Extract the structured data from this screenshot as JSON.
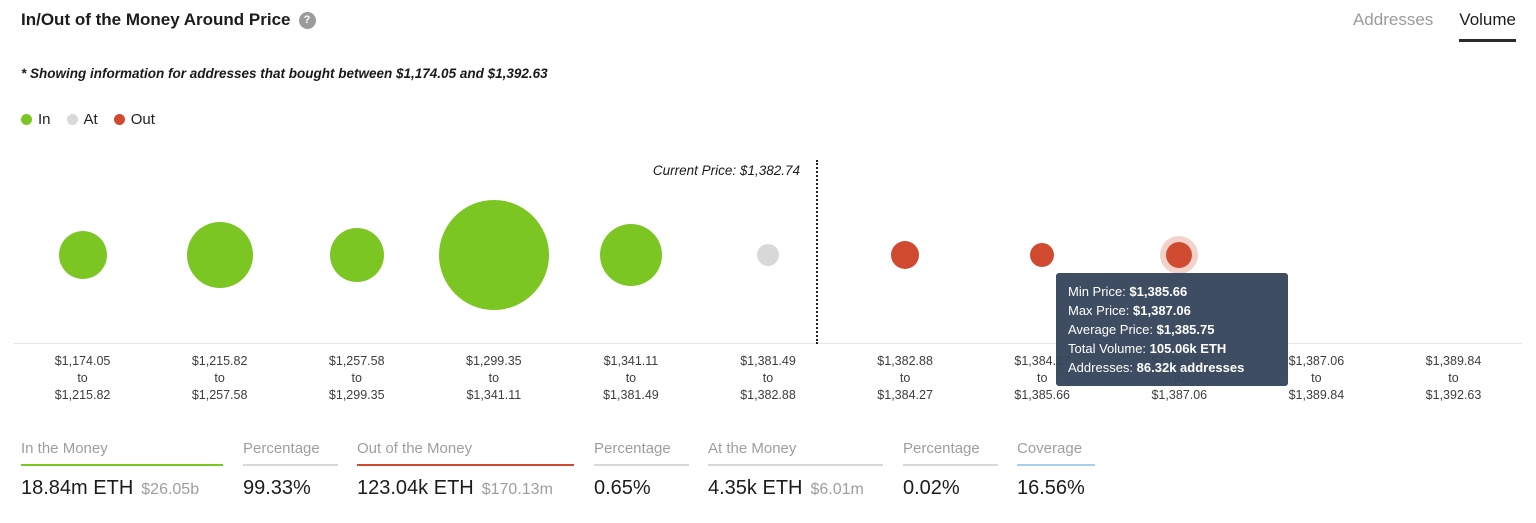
{
  "header": {
    "title": "In/Out of the Money Around Price",
    "help_icon": "?",
    "tabs": [
      {
        "label": "Addresses",
        "active": false
      },
      {
        "label": "Volume",
        "active": true
      }
    ]
  },
  "note": "* Showing information for addresses that bought between $1,174.05 and $1,392.63",
  "legend": [
    {
      "label": "In",
      "color": "#7BC623"
    },
    {
      "label": "At",
      "color": "#D8D8D8"
    },
    {
      "label": "Out",
      "color": "#D04A2F"
    }
  ],
  "chart_data": {
    "type": "bubble",
    "title": "In/Out of the Money Around Price",
    "current_price_label": "Current Price: $1,382.74",
    "current_price": 1382.74,
    "to_label": "to",
    "colors": {
      "in": "#7BC623",
      "at": "#D8D8D8",
      "out": "#D04A2F"
    },
    "buckets": [
      {
        "from": "$1,174.05",
        "to": "$1,215.82",
        "status": "in",
        "diameter": 48
      },
      {
        "from": "$1,215.82",
        "to": "$1,257.58",
        "status": "in",
        "diameter": 66
      },
      {
        "from": "$1,257.58",
        "to": "$1,299.35",
        "status": "in",
        "diameter": 54
      },
      {
        "from": "$1,299.35",
        "to": "$1,341.11",
        "status": "in",
        "diameter": 110
      },
      {
        "from": "$1,341.11",
        "to": "$1,381.49",
        "status": "in",
        "diameter": 62
      },
      {
        "from": "$1,381.49",
        "to": "$1,382.88",
        "status": "at",
        "diameter": 22
      },
      {
        "from": "$1,382.88",
        "to": "$1,384.27",
        "status": "out",
        "diameter": 28
      },
      {
        "from": "$1,384.27",
        "to": "$1,385.66",
        "status": "out",
        "diameter": 24
      },
      {
        "from": "$1,385.66",
        "to": "$1,387.06",
        "status": "out",
        "diameter": 26,
        "hovered": true
      },
      {
        "from": "$1,387.06",
        "to": "$1,389.84",
        "status": "none",
        "diameter": 0
      },
      {
        "from": "$1,389.84",
        "to": "$1,392.63",
        "status": "none",
        "diameter": 0
      }
    ]
  },
  "tooltip": {
    "rows": [
      {
        "label": "Min Price: ",
        "value": "$1,385.66"
      },
      {
        "label": "Max Price: ",
        "value": "$1,387.06"
      },
      {
        "label": "Average Price: ",
        "value": "$1,385.75"
      },
      {
        "label": "Total Volume: ",
        "value": "105.06k ETH"
      },
      {
        "label": "Addresses: ",
        "value": "86.32k addresses"
      }
    ]
  },
  "stats": [
    {
      "label": "In the Money",
      "value": "18.84m ETH",
      "secondary": "$26.05b",
      "underline": "#7BC623"
    },
    {
      "label": "Percentage",
      "value": "99.33%",
      "secondary": "",
      "underline": "#d8d8d8"
    },
    {
      "label": "Out of the Money",
      "value": "123.04k ETH",
      "secondary": "$170.13m",
      "underline": "#D04A2F"
    },
    {
      "label": "Percentage",
      "value": "0.65%",
      "secondary": "",
      "underline": "#d8d8d8"
    },
    {
      "label": "At the Money",
      "value": "4.35k ETH",
      "secondary": "$6.01m",
      "underline": "#d8d8d8"
    },
    {
      "label": "Percentage",
      "value": "0.02%",
      "secondary": "",
      "underline": "#d8d8d8"
    },
    {
      "label": "Coverage",
      "value": "16.56%",
      "secondary": "",
      "underline": "#a9cdea"
    }
  ]
}
